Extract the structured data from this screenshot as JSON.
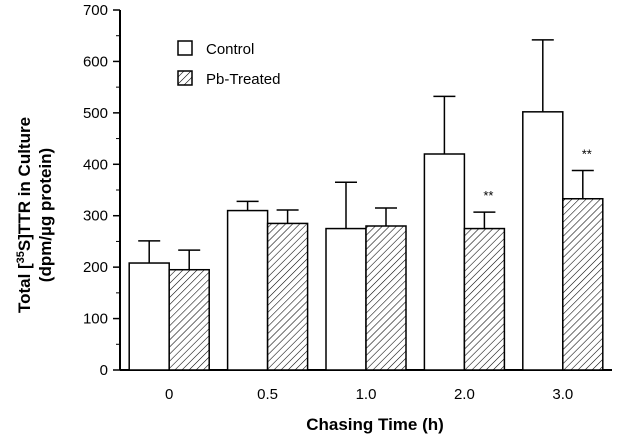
{
  "chart_data": {
    "type": "bar",
    "categories": [
      "0",
      "0.5",
      "1.0",
      "2.0",
      "3.0"
    ],
    "series": [
      {
        "name": "Control",
        "values": [
          208,
          310,
          275,
          420,
          502
        ],
        "error": [
          43,
          18,
          90,
          112,
          140
        ],
        "pattern": "open"
      },
      {
        "name": "Pb-Treated",
        "values": [
          195,
          285,
          280,
          275,
          333
        ],
        "error": [
          38,
          26,
          35,
          32,
          55
        ],
        "pattern": "hatched"
      }
    ],
    "annotations": [
      {
        "category_index": 3,
        "series_index": 1,
        "text": "**"
      },
      {
        "category_index": 4,
        "series_index": 1,
        "text": "**"
      }
    ],
    "yticks": [
      0,
      100,
      200,
      300,
      400,
      500,
      600,
      700
    ],
    "ylim": [
      0,
      700
    ],
    "xlabel": "Chasing Time (h)",
    "ylabel_line1": "Total [35S]TTR in Culture",
    "ylabel_line2": "(dpm/µg protein)",
    "legend_position": "top-left",
    "grid": false,
    "colors": {
      "bar_stroke": "#000000",
      "bar_fill_open": "#ffffff",
      "hatch": "#000000"
    }
  }
}
